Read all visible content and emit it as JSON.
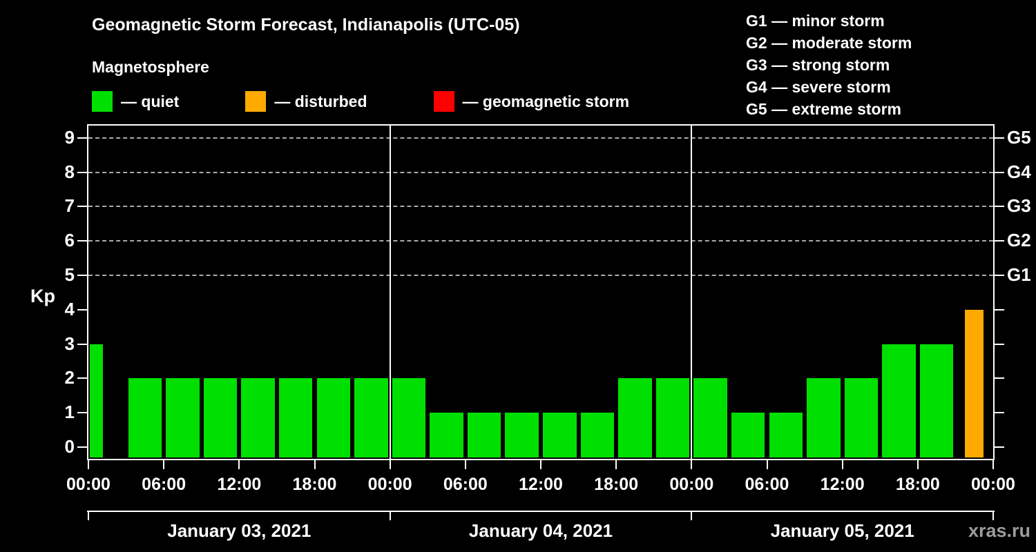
{
  "title": "Geomagnetic Storm Forecast, Indianapolis (UTC-05)",
  "subtitle": "Magnetosphere",
  "watermark": "xras.ru",
  "colors": {
    "background": "#000000",
    "text": "#ffffff",
    "axis": "#ffffff",
    "watermark": "#9c9c9c",
    "quiet": "#00e000",
    "disturbed": "#ffaa00",
    "storm": "#ff0000"
  },
  "legend": {
    "items": [
      {
        "label": "— quiet",
        "color": "#00e000"
      },
      {
        "label": "— disturbed",
        "color": "#ffaa00"
      },
      {
        "label": "— geomagnetic storm",
        "color": "#ff0000"
      }
    ]
  },
  "g_legend": [
    "G1 — minor storm",
    "G2 — moderate storm",
    "G3 — strong storm",
    "G4 — severe storm",
    "G5 — extreme storm"
  ],
  "chart_data": {
    "type": "bar",
    "title": "Geomagnetic Storm Forecast, Indianapolis (UTC-05)",
    "subtitle": "Magnetosphere",
    "xlabel": "",
    "ylabel": "Kp",
    "ylim": [
      -0.3,
      9.4
    ],
    "yticks": [
      0,
      1,
      2,
      3,
      4,
      5,
      6,
      7,
      8,
      9
    ],
    "dashed_levels": [
      5,
      6,
      7,
      8,
      9
    ],
    "right_labels": [
      {
        "text": "G5",
        "kp": 9
      },
      {
        "text": "G4",
        "kp": 8
      },
      {
        "text": "G3",
        "kp": 7
      },
      {
        "text": "G2",
        "kp": 6
      },
      {
        "text": "G1",
        "kp": 5
      }
    ],
    "x_tick_labels": [
      "00:00",
      "06:00",
      "12:00",
      "18:00",
      "00:00",
      "06:00",
      "12:00",
      "18:00",
      "00:00",
      "06:00",
      "12:00",
      "18:00",
      "00:00"
    ],
    "bar_hours": 3,
    "days": [
      {
        "label": "January 03, 2021",
        "kp": [
          3,
          2,
          2,
          2,
          2,
          2,
          2,
          2
        ]
      },
      {
        "label": "January 04, 2021",
        "kp": [
          2,
          1,
          1,
          1,
          1,
          1,
          2,
          2
        ]
      },
      {
        "label": "January 05, 2021",
        "kp": [
          2,
          1,
          1,
          2,
          2,
          3,
          3,
          4
        ]
      }
    ],
    "color_rules": {
      "quiet_max": 3,
      "disturbed_max": 4
    },
    "first_bar_width_fraction": 0.35,
    "last_bar_width_fraction": 0.5,
    "legend_position": "top-left",
    "grid": "dashed-horizontal-on-storm-levels"
  }
}
